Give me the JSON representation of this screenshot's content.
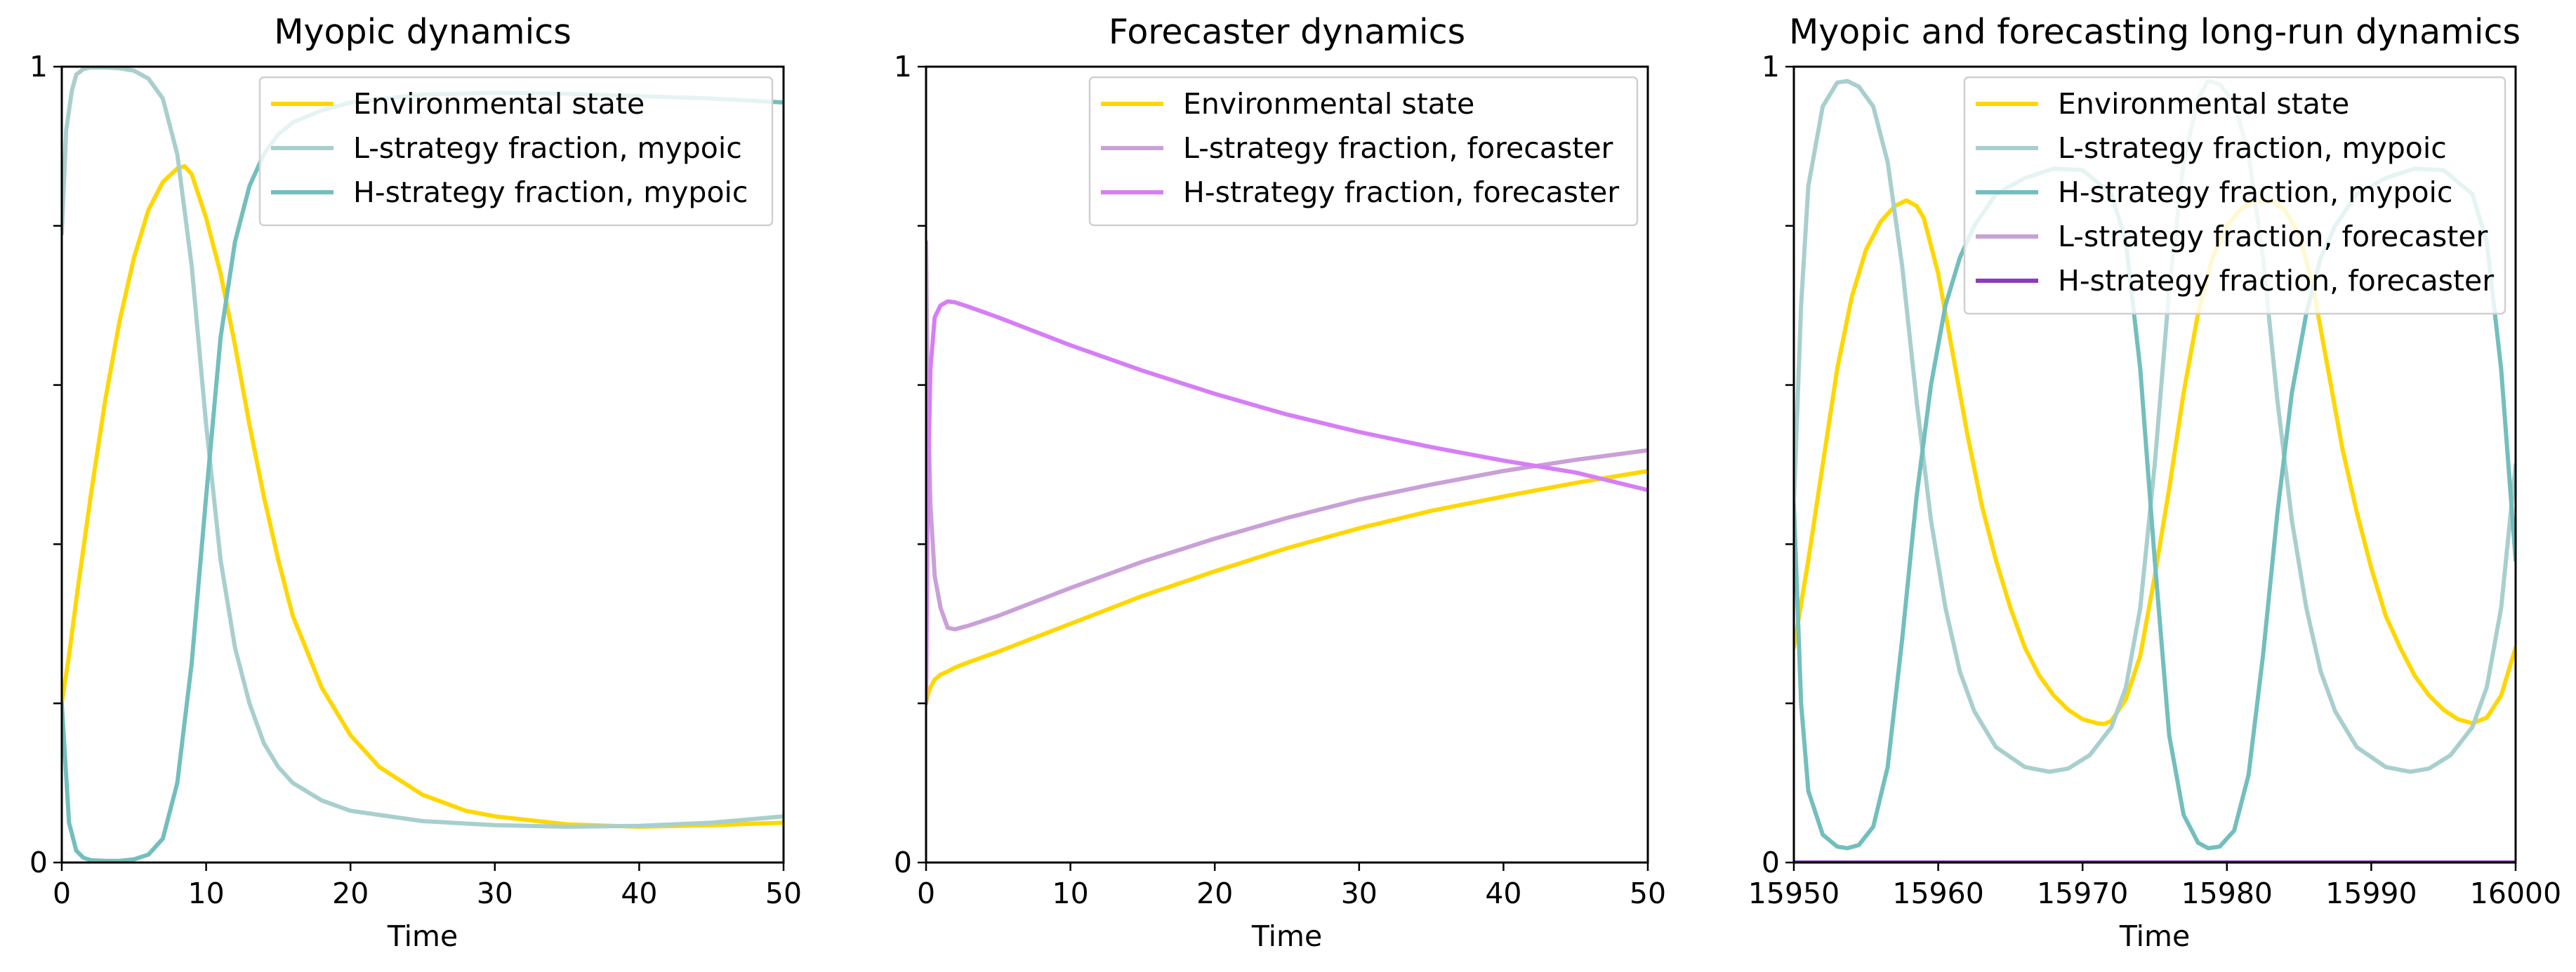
{
  "chart_data": [
    {
      "type": "line",
      "title": "Myopic dynamics",
      "xlabel": "Time",
      "ylabel": "",
      "xlim": [
        0,
        50
      ],
      "ylim": [
        0,
        1
      ],
      "xticks": [
        "0",
        "10",
        "20",
        "30",
        "40",
        "50"
      ],
      "yticks": [
        "0",
        "1"
      ],
      "legend_position": "top-right",
      "series": [
        {
          "name": "Environmental state",
          "color": "#ffd700",
          "x": [
            0,
            0.5,
            1,
            2,
            3,
            4,
            5,
            6,
            7,
            8,
            8.5,
            9,
            10,
            11,
            12,
            13,
            14,
            15,
            16,
            18,
            20,
            22,
            25,
            28,
            30,
            35,
            40,
            45,
            50
          ],
          "y": [
            0.2,
            0.26,
            0.33,
            0.46,
            0.58,
            0.68,
            0.76,
            0.82,
            0.855,
            0.872,
            0.875,
            0.865,
            0.81,
            0.74,
            0.65,
            0.55,
            0.46,
            0.38,
            0.31,
            0.22,
            0.16,
            0.12,
            0.085,
            0.065,
            0.058,
            0.048,
            0.045,
            0.047,
            0.05
          ]
        },
        {
          "name": "L-strategy fraction, mypoic",
          "color": "#a8cfcd",
          "x": [
            0,
            0.3,
            0.7,
            1,
            1.5,
            2,
            3,
            4,
            5,
            6,
            7,
            8,
            9,
            10,
            11,
            12,
            13,
            14,
            15,
            16,
            18,
            20,
            25,
            30,
            35,
            40,
            45,
            50
          ],
          "y": [
            0.79,
            0.92,
            0.97,
            0.99,
            0.997,
            0.999,
            0.999,
            0.998,
            0.995,
            0.985,
            0.96,
            0.89,
            0.75,
            0.55,
            0.38,
            0.27,
            0.2,
            0.15,
            0.12,
            0.1,
            0.078,
            0.065,
            0.052,
            0.047,
            0.045,
            0.046,
            0.05,
            0.058
          ]
        },
        {
          "name": "H-strategy fraction, mypoic",
          "color": "#72bfbd",
          "x": [
            0,
            0.5,
            1,
            1.5,
            2,
            3,
            4,
            5,
            6,
            7,
            8,
            9,
            10,
            11,
            12,
            13,
            14,
            15,
            16,
            18,
            20,
            25,
            30,
            35,
            40,
            45,
            50
          ],
          "y": [
            0.2,
            0.05,
            0.015,
            0.006,
            0.003,
            0.002,
            0.002,
            0.004,
            0.01,
            0.03,
            0.1,
            0.25,
            0.46,
            0.66,
            0.78,
            0.85,
            0.89,
            0.915,
            0.93,
            0.945,
            0.955,
            0.965,
            0.967,
            0.966,
            0.963,
            0.96,
            0.955
          ]
        }
      ]
    },
    {
      "type": "line",
      "title": "Forecaster dynamics",
      "xlabel": "Time",
      "ylabel": "",
      "xlim": [
        0,
        50
      ],
      "ylim": [
        0,
        1
      ],
      "xticks": [
        "0",
        "10",
        "20",
        "30",
        "40",
        "50"
      ],
      "yticks": [
        "0",
        "1"
      ],
      "legend_position": "top-right",
      "series": [
        {
          "name": "Environmental state",
          "color": "#ffd700",
          "x": [
            0,
            0.1,
            0.3,
            0.6,
            1,
            1.5,
            2,
            3,
            5,
            10,
            15,
            20,
            25,
            30,
            35,
            40,
            45,
            50
          ],
          "y": [
            0.2,
            0.21,
            0.22,
            0.23,
            0.236,
            0.24,
            0.245,
            0.252,
            0.265,
            0.3,
            0.335,
            0.366,
            0.395,
            0.42,
            0.442,
            0.46,
            0.477,
            0.492
          ]
        },
        {
          "name": "L-strategy fraction, forecaster",
          "color": "#c9a0d7",
          "x": [
            0,
            0.1,
            0.3,
            0.6,
            1,
            1.5,
            2,
            3,
            5,
            10,
            15,
            20,
            25,
            30,
            35,
            40,
            45,
            50
          ],
          "y": [
            0.78,
            0.6,
            0.45,
            0.36,
            0.32,
            0.295,
            0.293,
            0.298,
            0.31,
            0.345,
            0.378,
            0.407,
            0.433,
            0.456,
            0.475,
            0.492,
            0.506,
            0.518
          ]
        },
        {
          "name": "H-strategy fraction, forecaster",
          "color": "#d67ef5",
          "x": [
            0,
            0.1,
            0.3,
            0.6,
            1,
            1.5,
            2,
            3,
            5,
            10,
            15,
            20,
            25,
            30,
            35,
            40,
            45,
            50
          ],
          "y": [
            0.2,
            0.45,
            0.62,
            0.685,
            0.7,
            0.705,
            0.704,
            0.698,
            0.685,
            0.65,
            0.618,
            0.589,
            0.563,
            0.541,
            0.522,
            0.505,
            0.49,
            0.468
          ]
        }
      ]
    },
    {
      "type": "line",
      "title": "Myopic and forecasting long-run dynamics",
      "xlabel": "Time",
      "ylabel": "",
      "xlim": [
        15950,
        16000
      ],
      "ylim": [
        0,
        1
      ],
      "xticks": [
        "15950",
        "15960",
        "15970",
        "15980",
        "15990",
        "16000"
      ],
      "yticks": [
        "0",
        "1"
      ],
      "legend_position": "top-right",
      "series": [
        {
          "name": "Environmental state",
          "color": "#ffd700",
          "x": [
            15950,
            15951,
            15952,
            15953,
            15954,
            15955,
            15956,
            15957,
            15957.8,
            15958.5,
            15959,
            15960,
            15961,
            15962,
            15963,
            15964,
            15965,
            15966,
            15967,
            15968,
            15969,
            15970,
            15971,
            15971.5,
            15972,
            15973,
            15974,
            15975,
            15976,
            15977,
            15978,
            15979,
            15980,
            15981,
            15982,
            15983,
            15983.3,
            15984,
            15985,
            15986,
            15987,
            15988,
            15989,
            15990,
            15991,
            15992,
            15993,
            15994,
            15995,
            15996,
            15997,
            15998,
            15999,
            16000
          ],
          "y": [
            0.27,
            0.38,
            0.5,
            0.62,
            0.71,
            0.77,
            0.805,
            0.825,
            0.832,
            0.825,
            0.81,
            0.74,
            0.64,
            0.54,
            0.45,
            0.38,
            0.32,
            0.27,
            0.235,
            0.21,
            0.192,
            0.18,
            0.175,
            0.174,
            0.178,
            0.205,
            0.26,
            0.36,
            0.47,
            0.59,
            0.69,
            0.76,
            0.8,
            0.822,
            0.83,
            0.832,
            0.83,
            0.82,
            0.79,
            0.72,
            0.62,
            0.52,
            0.44,
            0.37,
            0.31,
            0.27,
            0.235,
            0.21,
            0.192,
            0.18,
            0.175,
            0.182,
            0.21,
            0.27
          ]
        },
        {
          "name": "L-strategy fraction, mypoic",
          "color": "#a8cfcd",
          "x": [
            15950,
            15950.5,
            15951,
            15952,
            15953,
            15953.7,
            15954.5,
            15955.5,
            15956.5,
            15957.5,
            15958.5,
            15959.5,
            15960.5,
            15961.5,
            15962.5,
            15964,
            15966,
            15967.7,
            15969,
            15970.5,
            15972,
            15973,
            15974,
            15975,
            15976,
            15977,
            15978,
            15978.7,
            15979.5,
            15980.5,
            15981.5,
            15982.5,
            15983.5,
            15984.5,
            15985.5,
            15986.5,
            15987.5,
            15989,
            15991,
            15992.7,
            15994,
            15995.5,
            15997,
            15998,
            15999,
            16000
          ],
          "y": [
            0.45,
            0.7,
            0.85,
            0.95,
            0.98,
            0.982,
            0.975,
            0.95,
            0.88,
            0.75,
            0.58,
            0.43,
            0.32,
            0.24,
            0.19,
            0.145,
            0.12,
            0.114,
            0.118,
            0.135,
            0.17,
            0.22,
            0.32,
            0.5,
            0.72,
            0.88,
            0.96,
            0.982,
            0.978,
            0.955,
            0.89,
            0.76,
            0.58,
            0.43,
            0.32,
            0.24,
            0.19,
            0.145,
            0.12,
            0.114,
            0.118,
            0.135,
            0.17,
            0.22,
            0.32,
            0.5
          ]
        },
        {
          "name": "H-strategy fraction, mypoic",
          "color": "#72bfbd",
          "x": [
            15950,
            15950.5,
            15951,
            15952,
            15953,
            15953.7,
            15954.5,
            15955.5,
            15956.5,
            15957.5,
            15958.5,
            15959.5,
            15960.5,
            15961.5,
            15962.5,
            15964,
            15966,
            15968,
            15970,
            15972,
            15973,
            15974,
            15975,
            15976,
            15977,
            15978,
            15978.7,
            15979.5,
            15980.5,
            15981.5,
            15982.5,
            15983.5,
            15984.5,
            15985.5,
            15986.5,
            15987.5,
            15989,
            15991,
            15993,
            15995,
            15997,
            15998,
            15999,
            16000
          ],
          "y": [
            0.45,
            0.2,
            0.09,
            0.035,
            0.02,
            0.018,
            0.022,
            0.045,
            0.12,
            0.28,
            0.46,
            0.6,
            0.7,
            0.76,
            0.8,
            0.84,
            0.86,
            0.872,
            0.87,
            0.84,
            0.78,
            0.62,
            0.38,
            0.16,
            0.06,
            0.025,
            0.018,
            0.02,
            0.04,
            0.11,
            0.26,
            0.44,
            0.59,
            0.69,
            0.76,
            0.8,
            0.84,
            0.86,
            0.872,
            0.87,
            0.84,
            0.78,
            0.62,
            0.38
          ]
        },
        {
          "name": "L-strategy fraction, forecaster",
          "color": "#c9a0d7",
          "x": [
            15950,
            16000
          ],
          "y": [
            0.0,
            0.0
          ]
        },
        {
          "name": "H-strategy fraction, forecaster",
          "color": "#8c3bc0",
          "x": [
            15950,
            16000
          ],
          "y": [
            0.0,
            0.0
          ]
        }
      ]
    }
  ]
}
